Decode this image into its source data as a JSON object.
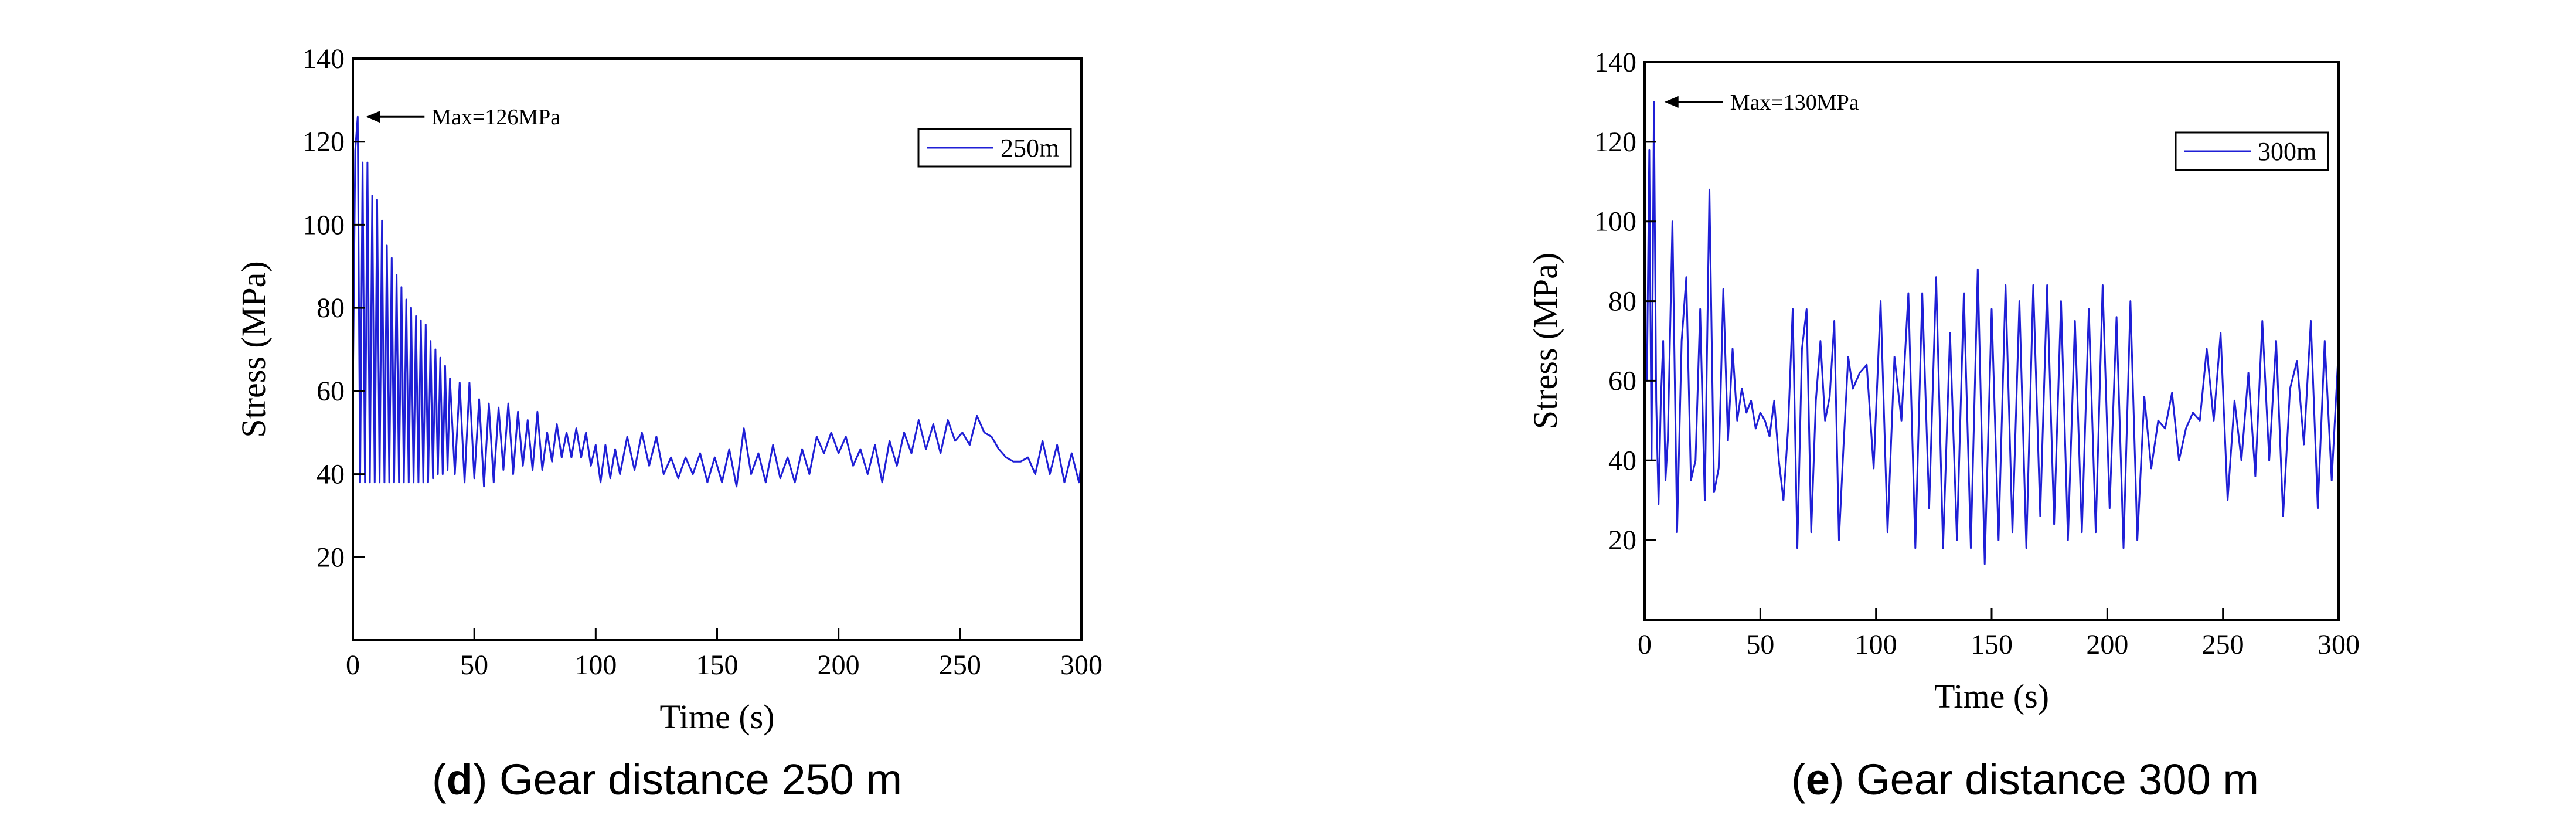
{
  "colors": {
    "series": "#1f1fd6",
    "axis": "#000000",
    "background": "#ffffff"
  },
  "chart_data": [
    {
      "type": "line",
      "caption_letter": "d",
      "caption_text": ") Gear distance 250 m",
      "caption_open": "(",
      "xlabel": "Time (s)",
      "ylabel": "Stress (MPa)",
      "xlim": [
        0,
        300
      ],
      "ylim": [
        0,
        140
      ],
      "xticks": [
        0,
        50,
        100,
        150,
        200,
        250,
        300
      ],
      "yticks": [
        20,
        40,
        60,
        80,
        100,
        120,
        140
      ],
      "legend": {
        "label": "250m",
        "position": "top-right"
      },
      "annotation": {
        "text": "Max=126MPa",
        "x": 2,
        "y": 126
      },
      "series": [
        {
          "name": "250m",
          "x": [
            0,
            1,
            2,
            3,
            4,
            5,
            6,
            7,
            8,
            9,
            10,
            11,
            12,
            13,
            14,
            15,
            16,
            17,
            18,
            19,
            20,
            21,
            22,
            23,
            24,
            25,
            26,
            27,
            28,
            29,
            30,
            31,
            32,
            33,
            34,
            35,
            36,
            37,
            38,
            39,
            40,
            42,
            44,
            46,
            48,
            50,
            52,
            54,
            56,
            58,
            60,
            62,
            64,
            66,
            68,
            70,
            72,
            74,
            76,
            78,
            80,
            82,
            84,
            86,
            88,
            90,
            92,
            94,
            96,
            98,
            100,
            102,
            104,
            106,
            108,
            110,
            113,
            116,
            119,
            122,
            125,
            128,
            131,
            134,
            137,
            140,
            143,
            146,
            149,
            152,
            155,
            158,
            161,
            164,
            167,
            170,
            173,
            176,
            179,
            182,
            185,
            188,
            191,
            194,
            197,
            200,
            203,
            206,
            209,
            212,
            215,
            218,
            221,
            224,
            227,
            230,
            233,
            236,
            239,
            242,
            245,
            248,
            251,
            254,
            257,
            260,
            263,
            266,
            269,
            272,
            275,
            278,
            281,
            284,
            287,
            290,
            293,
            296,
            299,
            300
          ],
          "y": [
            60,
            118,
            126,
            38,
            115,
            38,
            115,
            38,
            107,
            38,
            106,
            38,
            101,
            38,
            95,
            38,
            92,
            38,
            88,
            38,
            85,
            38,
            82,
            38,
            80,
            38,
            78,
            38,
            77,
            38,
            76,
            38,
            72,
            39,
            70,
            40,
            68,
            40,
            66,
            41,
            63,
            40,
            62,
            38,
            62,
            39,
            58,
            37,
            57,
            38,
            56,
            41,
            57,
            40,
            55,
            42,
            53,
            41,
            55,
            41,
            50,
            43,
            52,
            44,
            50,
            44,
            51,
            44,
            50,
            42,
            47,
            38,
            47,
            39,
            46,
            40,
            49,
            41,
            50,
            42,
            49,
            40,
            44,
            39,
            44,
            40,
            45,
            38,
            44,
            38,
            46,
            37,
            51,
            40,
            45,
            38,
            47,
            39,
            44,
            38,
            46,
            40,
            49,
            45,
            50,
            45,
            49,
            42,
            46,
            40,
            47,
            38,
            48,
            42,
            50,
            45,
            53,
            46,
            52,
            45,
            53,
            48,
            50,
            47,
            54,
            50,
            49,
            46,
            44,
            43,
            43,
            44,
            40,
            48,
            40,
            47,
            38,
            45,
            38,
            43
          ]
        }
      ]
    },
    {
      "type": "line",
      "caption_letter": "e",
      "caption_text": ") Gear distance 300 m",
      "caption_open": "(",
      "xlabel": "Time (s)",
      "ylabel": "Stress (MPa)",
      "xlim": [
        0,
        300
      ],
      "ylim": [
        0,
        140
      ],
      "xticks": [
        0,
        50,
        100,
        150,
        200,
        250,
        300
      ],
      "yticks": [
        20,
        40,
        60,
        80,
        100,
        120,
        140
      ],
      "legend": {
        "label": "300m",
        "position": "top-right"
      },
      "annotation": {
        "text": "Max=130MPa",
        "x": 5,
        "y": 130
      },
      "series": [
        {
          "name": "300m",
          "x": [
            0,
            1,
            2,
            3,
            4,
            5,
            6,
            7,
            8,
            9,
            10,
            12,
            14,
            16,
            18,
            20,
            22,
            24,
            26,
            28,
            30,
            32,
            34,
            36,
            38,
            40,
            42,
            44,
            46,
            48,
            50,
            52,
            54,
            56,
            58,
            60,
            62,
            64,
            66,
            68,
            70,
            72,
            74,
            76,
            78,
            80,
            82,
            84,
            86,
            88,
            90,
            93,
            96,
            99,
            102,
            105,
            108,
            111,
            114,
            117,
            120,
            123,
            126,
            129,
            132,
            135,
            138,
            141,
            144,
            147,
            150,
            153,
            156,
            159,
            162,
            165,
            168,
            171,
            174,
            177,
            180,
            183,
            186,
            189,
            192,
            195,
            198,
            201,
            204,
            207,
            210,
            213,
            216,
            219,
            222,
            225,
            228,
            231,
            234,
            237,
            240,
            243,
            246,
            249,
            252,
            255,
            258,
            261,
            264,
            267,
            270,
            273,
            276,
            279,
            282,
            285,
            288,
            291,
            294,
            297,
            300
          ],
          "y": [
            75,
            60,
            118,
            40,
            130,
            55,
            29,
            55,
            70,
            35,
            45,
            100,
            22,
            70,
            86,
            35,
            40,
            78,
            30,
            108,
            32,
            38,
            83,
            45,
            68,
            50,
            58,
            52,
            55,
            48,
            52,
            50,
            46,
            55,
            40,
            30,
            48,
            78,
            18,
            68,
            78,
            22,
            55,
            70,
            50,
            56,
            75,
            20,
            44,
            66,
            58,
            62,
            64,
            38,
            80,
            22,
            66,
            50,
            82,
            18,
            82,
            28,
            86,
            18,
            72,
            20,
            82,
            18,
            88,
            14,
            78,
            20,
            84,
            22,
            80,
            18,
            84,
            26,
            84,
            24,
            80,
            20,
            75,
            22,
            78,
            22,
            84,
            28,
            76,
            18,
            80,
            20,
            56,
            38,
            50,
            48,
            57,
            40,
            48,
            52,
            50,
            68,
            50,
            72,
            30,
            55,
            40,
            62,
            36,
            75,
            40,
            70,
            26,
            58,
            65,
            44,
            75,
            28,
            70,
            35,
            68
          ]
        }
      ]
    }
  ]
}
